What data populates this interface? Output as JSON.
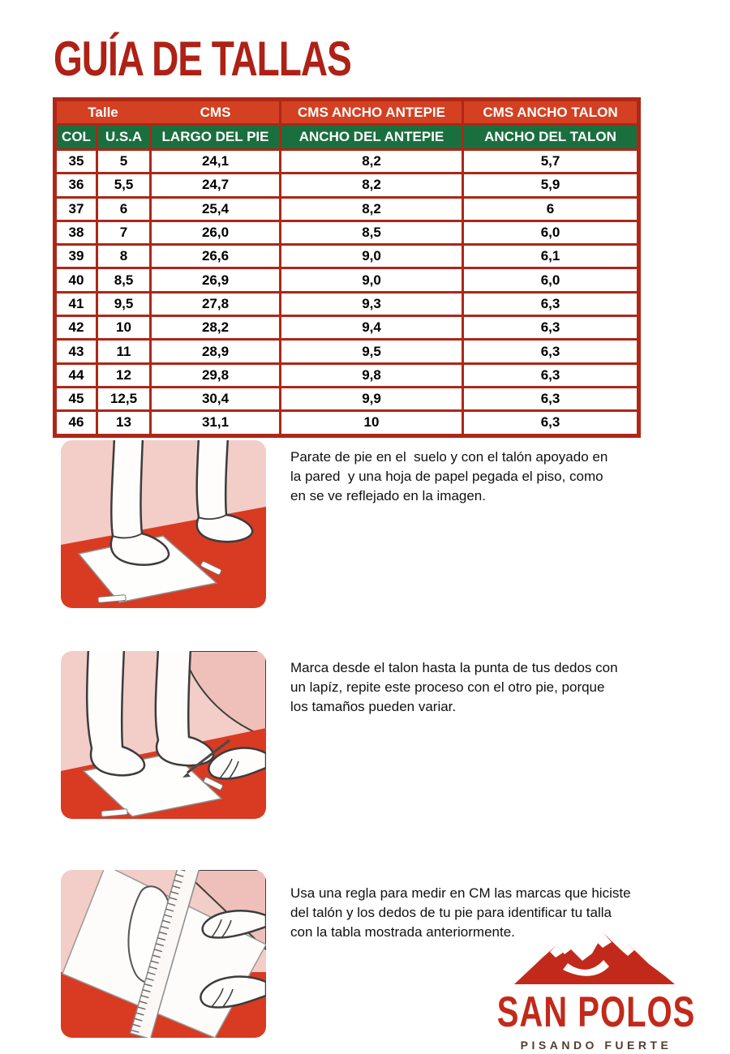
{
  "title": "GUÍA DE TALLAS",
  "colors": {
    "title-red": "#AE2116",
    "header-red": "#D34022",
    "header-green": "#1A6F3E",
    "grid-red": "#AE2717",
    "logo-red": "#C12A1B",
    "tagline-brown": "#523E2B",
    "wall-pink": "#F3CDC7",
    "floor-red": "#D93A22"
  },
  "table": {
    "top_headers": [
      "Talle",
      "CMS",
      "CMS ANCHO ANTEPIE",
      "CMS ANCHO TALON"
    ],
    "sub_headers": [
      "COL",
      "U.S.A",
      "LARGO DEL PIE",
      "ANCHO DEL ANTEPIE",
      "ANCHO DEL TALON"
    ],
    "rows": [
      [
        "35",
        "5",
        "24,1",
        "8,2",
        "5,7"
      ],
      [
        "36",
        "5,5",
        "24,7",
        "8,2",
        "5,9"
      ],
      [
        "37",
        "6",
        "25,4",
        "8,2",
        "6"
      ],
      [
        "38",
        "7",
        "26,0",
        "8,5",
        "6,0"
      ],
      [
        "39",
        "8",
        "26,6",
        "9,0",
        "6,1"
      ],
      [
        "40",
        "8,5",
        "26,9",
        "9,0",
        "6,0"
      ],
      [
        "41",
        "9,5",
        "27,8",
        "9,3",
        "6,3"
      ],
      [
        "42",
        "10",
        "28,2",
        "9,4",
        "6,3"
      ],
      [
        "43",
        "11",
        "28,9",
        "9,5",
        "6,3"
      ],
      [
        "44",
        "12",
        "29,8",
        "9,8",
        "6,3"
      ],
      [
        "45",
        "12,5",
        "30,4",
        "9,9",
        "6,3"
      ],
      [
        "46",
        "13",
        "31,1",
        "10",
        "6,3"
      ]
    ]
  },
  "instructions": [
    {
      "text": "Parate de pie en el  suelo y con el talón apoyado en\nla pared  y una hoja de papel pegada el piso, como\nen se ve reflejado en la imagen."
    },
    {
      "text": "Marca desde el talon hasta la punta de tus dedos con\nun lapíz, repite este proceso con el otro pie, porque\nlos tamaños pueden variar."
    },
    {
      "text": "Usa una regla para medir en CM las marcas que hiciste\ndel talón y los dedos de tu pie para identificar tu talla\ncon la tabla mostrada anteriormente."
    }
  ],
  "logo": {
    "name": "SAN POLOS",
    "tagline": "PISANDO FUERTE"
  }
}
